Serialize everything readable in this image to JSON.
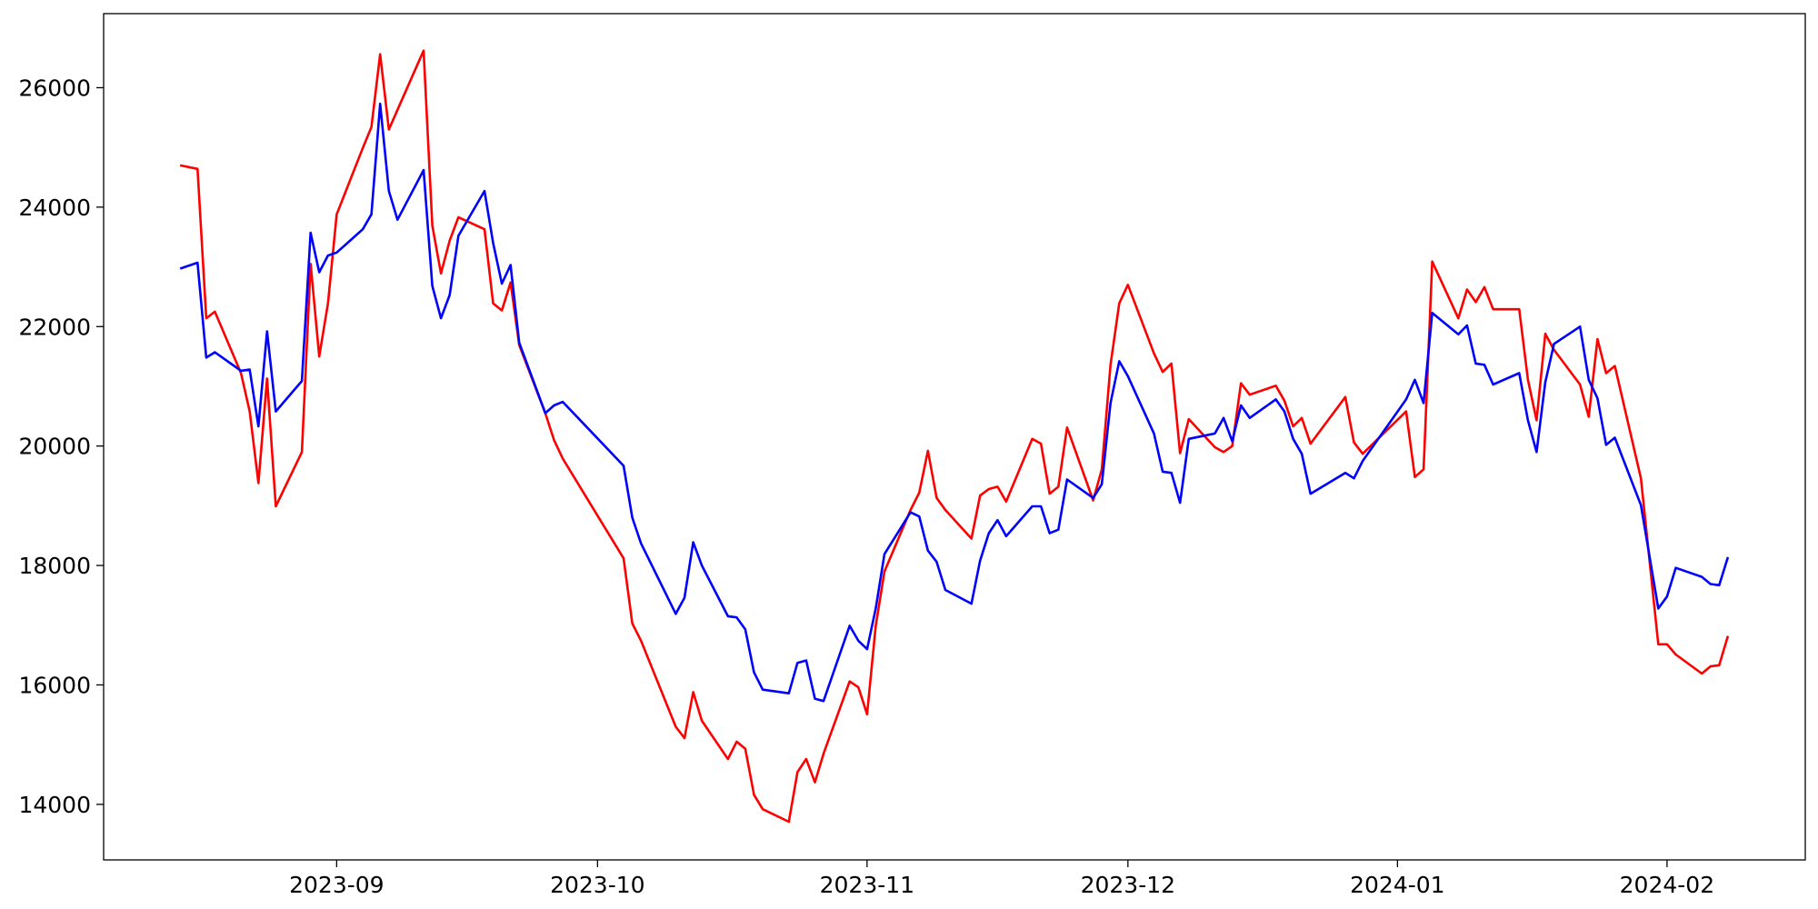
{
  "chart_data": {
    "type": "line",
    "x": [
      -18,
      -16,
      -15,
      -14,
      -11,
      -10,
      -9,
      -8,
      -7,
      -4,
      -3,
      -2,
      -1,
      0,
      3,
      4,
      5,
      6,
      7,
      10,
      11,
      12,
      13,
      14,
      17,
      18,
      19,
      20,
      21,
      24,
      25,
      26,
      33,
      34,
      35,
      39,
      40,
      41,
      42,
      45,
      46,
      47,
      48,
      49,
      52,
      53,
      54,
      55,
      56,
      59,
      60,
      61,
      62,
      63,
      66,
      67,
      68,
      69,
      70,
      73,
      74,
      75,
      76,
      77,
      80,
      81,
      82,
      83,
      84,
      87,
      88,
      89,
      90,
      91,
      94,
      95,
      96,
      97,
      98,
      101,
      102,
      103,
      104,
      105,
      108,
      109,
      110,
      111,
      112,
      116,
      117,
      118,
      123,
      124,
      125,
      126,
      129,
      130,
      131,
      132,
      133,
      136,
      137,
      138,
      139,
      140,
      143,
      144,
      145,
      146,
      147,
      150,
      152,
      153,
      154,
      157,
      158,
      159,
      160
    ],
    "series": [
      {
        "color": "#ff0000",
        "values": [
          24700,
          24640,
          22140,
          22250,
          21220,
          20580,
          19380,
          21130,
          18990,
          19900,
          23050,
          21500,
          22390,
          23880,
          24990,
          25340,
          26560,
          25300,
          25630,
          26620,
          23690,
          22890,
          23440,
          23830,
          23630,
          22390,
          22270,
          22740,
          21690,
          20550,
          20100,
          19790,
          18120,
          17030,
          16740,
          15300,
          15110,
          15880,
          15400,
          14760,
          15050,
          14930,
          14160,
          13920,
          13710,
          14540,
          14760,
          14370,
          14850,
          16060,
          15960,
          15510,
          16990,
          17900,
          18930,
          19220,
          19920,
          19130,
          18930,
          18450,
          19170,
          19280,
          19320,
          19070,
          20120,
          20040,
          19200,
          19320,
          20310,
          19090,
          19610,
          21360,
          22390,
          22700,
          21550,
          21240,
          21380,
          19880,
          20450,
          19980,
          19900,
          20000,
          21050,
          20860,
          21010,
          20760,
          20330,
          20470,
          20040,
          20820,
          20060,
          19870,
          20580,
          19480,
          19610,
          23090,
          22140,
          22620,
          22410,
          22660,
          22290,
          22290,
          21110,
          20430,
          21880,
          21610,
          21030,
          20490,
          21790,
          21220,
          21340,
          19460,
          16680,
          16680,
          16510,
          16190,
          16310,
          16330,
          16820
        ]
      },
      {
        "color": "#0000ff",
        "values": [
          22970,
          23070,
          21480,
          21570,
          21260,
          21280,
          20330,
          21920,
          20580,
          21090,
          23570,
          22910,
          23190,
          23240,
          23630,
          23880,
          25730,
          24270,
          23790,
          24620,
          22680,
          22140,
          22530,
          23520,
          24270,
          23400,
          22720,
          23030,
          21730,
          20550,
          20680,
          20740,
          19670,
          18800,
          18370,
          17190,
          17460,
          18390,
          18000,
          17150,
          17130,
          16930,
          16210,
          15920,
          15860,
          16370,
          16410,
          15770,
          15730,
          16990,
          16740,
          16600,
          17280,
          18190,
          18890,
          18820,
          18250,
          18060,
          17590,
          17360,
          18080,
          18540,
          18760,
          18490,
          18990,
          18990,
          18540,
          18600,
          19440,
          19130,
          19360,
          20720,
          21420,
          21170,
          20210,
          19570,
          19550,
          19050,
          20120,
          20210,
          20470,
          20080,
          20680,
          20470,
          20780,
          20580,
          20120,
          19870,
          19200,
          19550,
          19460,
          19750,
          20780,
          21110,
          20720,
          22230,
          21870,
          22020,
          21380,
          21360,
          21030,
          21220,
          20430,
          19900,
          21070,
          21710,
          22000,
          21110,
          20800,
          20020,
          20140,
          19010,
          17280,
          17480,
          17960,
          17810,
          17690,
          17670,
          18140
        ]
      }
    ],
    "xlim": [
      -26.8,
      168.9
    ],
    "xticks": [
      {
        "value": 0,
        "label": "2023-09"
      },
      {
        "value": 30,
        "label": "2023-10"
      },
      {
        "value": 61,
        "label": "2023-11"
      },
      {
        "value": 91,
        "label": "2023-12"
      },
      {
        "value": 122,
        "label": "2024-01"
      },
      {
        "value": 153,
        "label": "2024-02"
      }
    ],
    "ylim": [
      13070,
      27240
    ],
    "yticks": [
      14000,
      16000,
      18000,
      20000,
      22000,
      24000,
      26000
    ]
  }
}
